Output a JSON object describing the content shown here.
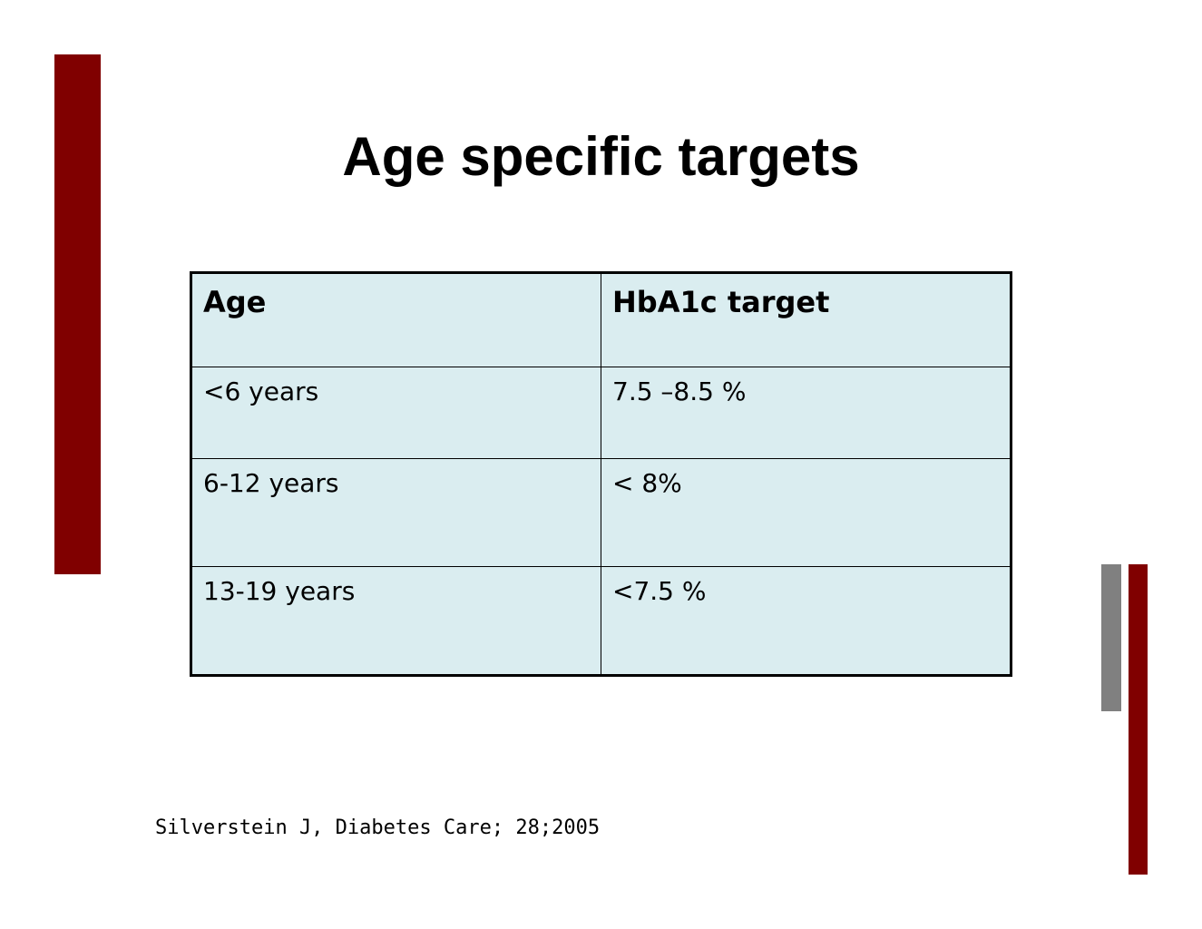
{
  "slide": {
    "title": "Age specific targets",
    "table": {
      "header": [
        "Age",
        "HbA1c target"
      ],
      "rows": [
        [
          "<6 years",
          "7.5 –8.5 %"
        ],
        [
          "6-12 years",
          "< 8%"
        ],
        [
          "13-19 years",
          "<7.5 %"
        ]
      ]
    },
    "citation": "Silverstein J, Diabetes Care; 28;2005"
  }
}
